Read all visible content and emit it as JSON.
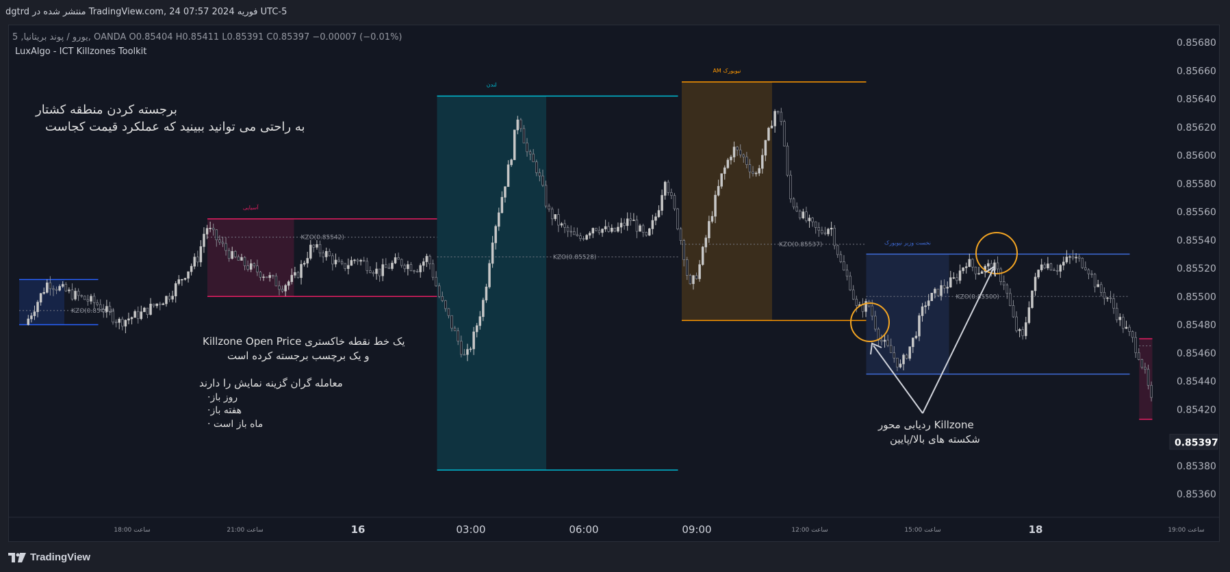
{
  "header": {
    "published_text": "dgtrd منتشر شده در TradingView.com, 24 فوریه 2024 07:57 UTC-5"
  },
  "legend": {
    "symbol_line": "یورو / پوند بریتانیا, 5, OANDA O0.85404 H0.85411 L0.85391 C0.85397 −0.00007 (−0.01%)",
    "indicator": "LuxAlgo - ICT Killzones Toolkit"
  },
  "branding": {
    "logo_text": "TradingView"
  },
  "annotations": {
    "highlight_title": "برجسته کردن منطقه کشتار",
    "highlight_sub": "به راحتی می توانید ببینید که عملکرد قیمت کجاست",
    "kzo_line1": "Killzone Open Price یک خط نقطه خاکستری",
    "kzo_line2": "و یک برچسب برجسته کرده است",
    "traders_title": "معامله گران گزینه نمایش را دارند",
    "traders_items": [
      "·روز باز",
      "·هفته باز",
      "· ماه باز است"
    ],
    "pivot_line1": "ردیابی محور Killzone",
    "pivot_line2": "شکسته های بالا/پایین"
  },
  "colors": {
    "background": "#131722",
    "bull_candle": "#c8c8c8",
    "asia": "#e91e63",
    "london": "#00bcd4",
    "ny_am": "#ff9800",
    "ny_lunch": "#3f6bd8",
    "sydney": "#2962ff",
    "highlight_circle": "#f5a623"
  },
  "chart_data": {
    "type": "candlestick",
    "symbol": "EURGBP",
    "timeframe": "5",
    "y_axis": {
      "range": [
        0.8535,
        0.8569
      ],
      "ticks": [
        "0.85680",
        "0.85660",
        "0.85640",
        "0.85620",
        "0.85600",
        "0.85580",
        "0.85560",
        "0.85540",
        "0.85520",
        "0.85500",
        "0.85480",
        "0.85460",
        "0.85440",
        "0.85420",
        "0.85380",
        "0.85360"
      ]
    },
    "x_axis": {
      "ticks": [
        {
          "label": "18:00 ساعت",
          "hour": -6,
          "major": false
        },
        {
          "label": "21:00 ساعت",
          "hour": -3,
          "major": false
        },
        {
          "label": "16",
          "hour": 0,
          "major": true
        },
        {
          "label": "03:00",
          "hour": 3,
          "major": true
        },
        {
          "label": "06:00",
          "hour": 6,
          "major": true
        },
        {
          "label": "09:00",
          "hour": 9,
          "major": true
        },
        {
          "label": "12:00 ساعت",
          "hour": 12,
          "major": false
        },
        {
          "label": "15:00 ساعت",
          "hour": 15,
          "major": false
        },
        {
          "label": "18",
          "hour": 18,
          "major": true
        },
        {
          "label": "19:00 ساعت",
          "hour": 22,
          "major": false
        }
      ]
    },
    "last_price": "0.85397",
    "series_anchors": [
      {
        "hour": -8.8,
        "price": 0.8548
      },
      {
        "hour": -8.2,
        "price": 0.8551
      },
      {
        "hour": -7.6,
        "price": 0.85502
      },
      {
        "hour": -6.9,
        "price": 0.85495
      },
      {
        "hour": -6.3,
        "price": 0.85482
      },
      {
        "hour": -5.7,
        "price": 0.85488
      },
      {
        "hour": -5.0,
        "price": 0.855
      },
      {
        "hour": -4.5,
        "price": 0.85518
      },
      {
        "hour": -4.2,
        "price": 0.85528
      },
      {
        "hour": -4.0,
        "price": 0.8555
      },
      {
        "hour": -3.7,
        "price": 0.8554
      },
      {
        "hour": -3.3,
        "price": 0.85528
      },
      {
        "hour": -2.8,
        "price": 0.8552
      },
      {
        "hour": -2.4,
        "price": 0.85515
      },
      {
        "hour": -2.0,
        "price": 0.85507
      },
      {
        "hour": -1.6,
        "price": 0.85514
      },
      {
        "hour": -1.2,
        "price": 0.85535
      },
      {
        "hour": -0.8,
        "price": 0.8553
      },
      {
        "hour": -0.4,
        "price": 0.8552
      },
      {
        "hour": 0.0,
        "price": 0.85527
      },
      {
        "hour": 0.6,
        "price": 0.85517
      },
      {
        "hour": 1.1,
        "price": 0.85525
      },
      {
        "hour": 1.6,
        "price": 0.8552
      },
      {
        "hour": 1.9,
        "price": 0.85528
      },
      {
        "hour": 2.2,
        "price": 0.855
      },
      {
        "hour": 2.6,
        "price": 0.85475
      },
      {
        "hour": 2.9,
        "price": 0.85455
      },
      {
        "hour": 3.1,
        "price": 0.8547
      },
      {
        "hour": 3.4,
        "price": 0.855
      },
      {
        "hour": 3.6,
        "price": 0.8554
      },
      {
        "hour": 3.9,
        "price": 0.85575
      },
      {
        "hour": 4.1,
        "price": 0.85598
      },
      {
        "hour": 4.3,
        "price": 0.8563
      },
      {
        "hour": 4.55,
        "price": 0.856
      },
      {
        "hour": 4.8,
        "price": 0.8559
      },
      {
        "hour": 5.1,
        "price": 0.8556
      },
      {
        "hour": 5.5,
        "price": 0.85548
      },
      {
        "hour": 5.9,
        "price": 0.8554
      },
      {
        "hour": 6.3,
        "price": 0.8555
      },
      {
        "hour": 6.8,
        "price": 0.85545
      },
      {
        "hour": 7.3,
        "price": 0.85555
      },
      {
        "hour": 7.7,
        "price": 0.8554
      },
      {
        "hour": 8.0,
        "price": 0.8556
      },
      {
        "hour": 8.2,
        "price": 0.85585
      },
      {
        "hour": 8.5,
        "price": 0.85555
      },
      {
        "hour": 8.7,
        "price": 0.8553
      },
      {
        "hour": 8.85,
        "price": 0.85505
      },
      {
        "hour": 9.1,
        "price": 0.8552
      },
      {
        "hour": 9.4,
        "price": 0.85555
      },
      {
        "hour": 9.7,
        "price": 0.85585
      },
      {
        "hour": 10.0,
        "price": 0.85605
      },
      {
        "hour": 10.3,
        "price": 0.85598
      },
      {
        "hour": 10.6,
        "price": 0.85585
      },
      {
        "hour": 10.9,
        "price": 0.8561
      },
      {
        "hour": 11.1,
        "price": 0.85632
      },
      {
        "hour": 11.3,
        "price": 0.85625
      },
      {
        "hour": 11.5,
        "price": 0.8557
      },
      {
        "hour": 11.9,
        "price": 0.85555
      },
      {
        "hour": 12.3,
        "price": 0.85545
      },
      {
        "hour": 12.6,
        "price": 0.8555
      },
      {
        "hour": 12.9,
        "price": 0.8552
      },
      {
        "hour": 13.1,
        "price": 0.8551
      },
      {
        "hour": 13.3,
        "price": 0.8549
      },
      {
        "hour": 13.6,
        "price": 0.85495
      },
      {
        "hour": 13.9,
        "price": 0.8547
      },
      {
        "hour": 14.2,
        "price": 0.8546
      },
      {
        "hour": 14.45,
        "price": 0.8545
      },
      {
        "hour": 14.8,
        "price": 0.8547
      },
      {
        "hour": 15.1,
        "price": 0.85495
      },
      {
        "hour": 15.5,
        "price": 0.85505
      },
      {
        "hour": 15.9,
        "price": 0.85512
      },
      {
        "hour": 16.2,
        "price": 0.85525
      },
      {
        "hour": 16.5,
        "price": 0.85518
      },
      {
        "hour": 16.9,
        "price": 0.85522
      },
      {
        "hour": 17.2,
        "price": 0.8551
      },
      {
        "hour": 17.5,
        "price": 0.85478
      },
      {
        "hour": 17.7,
        "price": 0.8547
      },
      {
        "hour": 17.9,
        "price": 0.855
      },
      {
        "hour": 18.2,
        "price": 0.85525
      },
      {
        "hour": 18.6,
        "price": 0.8552
      },
      {
        "hour": 19.0,
        "price": 0.85528
      },
      {
        "hour": 19.4,
        "price": 0.85522
      },
      {
        "hour": 19.7,
        "price": 0.85505
      },
      {
        "hour": 20.0,
        "price": 0.85498
      },
      {
        "hour": 20.3,
        "price": 0.85482
      },
      {
        "hour": 20.6,
        "price": 0.8547
      },
      {
        "hour": 20.8,
        "price": 0.85458
      },
      {
        "hour": 21.0,
        "price": 0.8544
      },
      {
        "hour": 21.1,
        "price": 0.85425
      }
    ],
    "killzones": [
      {
        "label": "",
        "start_hour": -9.0,
        "end_hour": -7.8,
        "extend_hour": -6.9,
        "high": 0.85512,
        "low": 0.8548,
        "kzo_label": "KZO(0.85490)",
        "kzo": 0.8549,
        "color_key": "sydney"
      },
      {
        "label": "آسیایی",
        "start_hour": -4.0,
        "end_hour": -1.7,
        "extend_hour": 2.1,
        "high": 0.85555,
        "low": 0.855,
        "kzo_label": "KZO(0.85542)",
        "kzo": 0.85542,
        "color_key": "asia"
      },
      {
        "label": "لندن",
        "start_hour": 2.1,
        "end_hour": 5.0,
        "extend_hour": 8.5,
        "high": 0.85642,
        "low": 0.85377,
        "kzo_label": "KZO(0.85528)",
        "kzo": 0.85528,
        "color_key": "london"
      },
      {
        "label": "AM نیویورک",
        "start_hour": 8.6,
        "end_hour": 11.0,
        "extend_hour": 13.5,
        "high": 0.85652,
        "low": 0.85483,
        "kzo_label": "KZO(0.85537)",
        "kzo": 0.85537,
        "color_key": "ny_am"
      },
      {
        "label": "نخست وزیر نیویورک",
        "start_hour": 13.5,
        "end_hour": 15.7,
        "extend_hour": 20.5,
        "high": 0.8553,
        "low": 0.85445,
        "kzo_label": "KZO(0.85500)",
        "kzo": 0.855,
        "color_key": "ny_lunch"
      },
      {
        "label": "",
        "start_hour": 20.75,
        "end_hour": 21.1,
        "extend_hour": 21.1,
        "high": 0.8547,
        "low": 0.85413,
        "kzo_label": "",
        "kzo": 0.85465,
        "color_key": "asia"
      }
    ]
  }
}
